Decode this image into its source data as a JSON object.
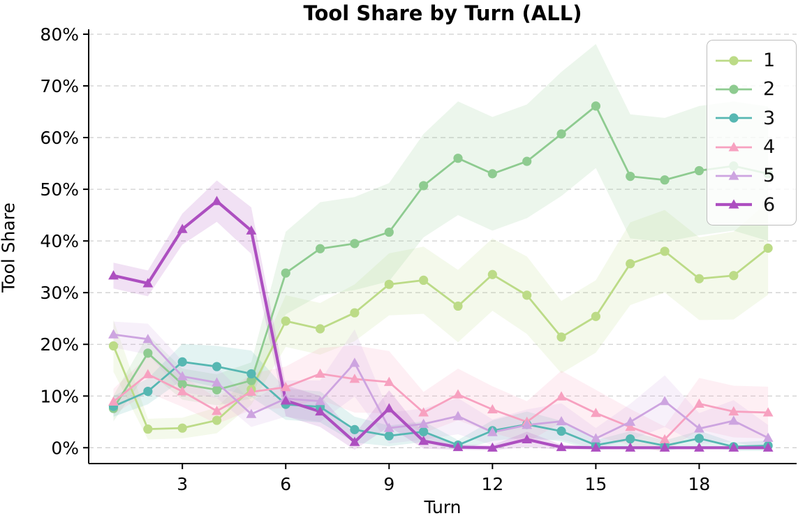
{
  "figure": {
    "title": "Tool Share by Turn (ALL)"
  },
  "axes": {
    "x_label": "Turn",
    "y_label": "Tool Share",
    "x_ticks": [
      {
        "turn": 3,
        "label": "3"
      },
      {
        "turn": 6,
        "label": "6"
      },
      {
        "turn": 9,
        "label": "9"
      },
      {
        "turn": 12,
        "label": "12"
      },
      {
        "turn": 15,
        "label": "15"
      },
      {
        "turn": 18,
        "label": "18"
      }
    ],
    "y_ticks": [
      {
        "value": 0,
        "label": "0%"
      },
      {
        "value": 10,
        "label": "10%"
      },
      {
        "value": 20,
        "label": "20%"
      },
      {
        "value": 30,
        "label": "30%"
      },
      {
        "value": 40,
        "label": "40%"
      },
      {
        "value": 50,
        "label": "50%"
      },
      {
        "value": 60,
        "label": "60%"
      },
      {
        "value": 70,
        "label": "70%"
      },
      {
        "value": 80,
        "label": "80%"
      }
    ]
  },
  "legend": {
    "position": "upper-right",
    "items": [
      {
        "label": "1"
      },
      {
        "label": "2"
      },
      {
        "label": "3"
      },
      {
        "label": "4"
      },
      {
        "label": "5"
      },
      {
        "label": "6"
      }
    ]
  },
  "style": {
    "grid_color": "#cfcfcf",
    "spine_color": "#000000",
    "band_alpha": 0.17
  },
  "chart_data": {
    "type": "line",
    "title": "Tool Share by Turn (ALL)",
    "xlabel": "Turn",
    "ylabel": "Tool Share",
    "x": [
      1,
      2,
      3,
      4,
      5,
      6,
      7,
      8,
      9,
      10,
      11,
      12,
      13,
      14,
      15,
      16,
      17,
      18,
      19,
      20
    ],
    "xlim": [
      0.3,
      20.8
    ],
    "ylim": [
      0,
      80
    ],
    "y_unit": "percent",
    "grid": "horizontal-dashed",
    "legend_position": "upper right",
    "series": [
      {
        "name": "1",
        "color": "#bcdb87",
        "marker": "circle",
        "line_width": 2.8,
        "values": [
          19.7,
          3.6,
          3.8,
          5.3,
          11.3,
          24.5,
          23.0,
          26.1,
          31.6,
          32.4,
          27.4,
          33.5,
          29.5,
          21.4,
          25.4,
          35.6,
          38.0,
          32.7,
          33.3,
          38.6
        ],
        "band_halfwidth": [
          5,
          2,
          2,
          2.5,
          3,
          5,
          5,
          5.5,
          6,
          6.5,
          7,
          7,
          7.5,
          7,
          7,
          8,
          8,
          8,
          8.5,
          9
        ]
      },
      {
        "name": "2",
        "color": "#8ecb90",
        "marker": "circle",
        "line_width": 2.8,
        "values": [
          7.6,
          18.3,
          12.3,
          11.2,
          13.0,
          33.8,
          38.5,
          39.5,
          41.7,
          50.7,
          56.0,
          53.0,
          55.4,
          60.7,
          66.1,
          52.5,
          51.8,
          53.6,
          54.5,
          53.0
        ],
        "band_halfwidth": [
          2.5,
          3.5,
          3,
          3,
          3.5,
          8,
          9,
          9,
          9.5,
          10,
          11,
          11,
          11,
          12,
          12,
          12,
          12,
          12.5,
          12.5,
          13
        ]
      },
      {
        "name": "3",
        "color": "#56b7b2",
        "marker": "circle",
        "line_width": 2.8,
        "values": [
          8.0,
          10.9,
          16.6,
          15.7,
          14.3,
          8.4,
          7.9,
          3.5,
          2.3,
          3.1,
          0.5,
          3.3,
          4.5,
          3.2,
          0.5,
          1.7,
          0.4,
          1.8,
          0.2,
          0.4
        ],
        "band_halfwidth": [
          2,
          2.5,
          3.5,
          4,
          4.5,
          3,
          3,
          2.5,
          2,
          2,
          1,
          2,
          2.5,
          2,
          1,
          1.5,
          1,
          1.5,
          0.8,
          1
        ]
      },
      {
        "name": "4",
        "color": "#f7a1c0",
        "marker": "triangle",
        "line_width": 2.8,
        "values": [
          8.9,
          14.2,
          10.9,
          7.1,
          10.8,
          11.7,
          14.3,
          13.3,
          12.7,
          6.8,
          10.3,
          7.4,
          5.0,
          9.9,
          6.7,
          4.0,
          1.6,
          8.5,
          7.0,
          6.8
        ],
        "band_halfwidth": [
          2.5,
          3.5,
          3,
          2.5,
          3.5,
          4,
          5,
          6.5,
          6,
          4,
          5,
          4.5,
          4,
          5,
          4.5,
          3.5,
          2.5,
          5,
          5,
          5
        ]
      },
      {
        "name": "5",
        "color": "#cda4e0",
        "marker": "triangle",
        "line_width": 2.8,
        "values": [
          21.9,
          21.0,
          13.8,
          12.6,
          6.5,
          9.5,
          9.0,
          16.4,
          3.8,
          4.6,
          6.1,
          3.0,
          4.4,
          5.1,
          1.8,
          5.0,
          9.0,
          3.7,
          5.2,
          1.9
        ],
        "band_halfwidth": [
          2.5,
          3,
          3,
          3,
          2.5,
          3.5,
          4,
          6.5,
          3,
          3,
          3.5,
          2.5,
          3,
          3.5,
          2,
          3.5,
          5,
          3,
          4,
          2.5
        ]
      },
      {
        "name": "6",
        "color": "#ad4fc0",
        "marker": "triangle",
        "line_width": 4.2,
        "values": [
          33.3,
          31.8,
          42.3,
          47.7,
          42.0,
          9.1,
          7.0,
          1.1,
          7.6,
          1.3,
          0.1,
          0.0,
          1.6,
          0.1,
          0.0,
          0.0,
          0.0,
          0.0,
          0.0,
          0.0
        ],
        "band_halfwidth": [
          2.5,
          2.5,
          3,
          4,
          4.5,
          3,
          3,
          1.5,
          3.5,
          1.5,
          0.5,
          0.5,
          1.5,
          0.5,
          0.3,
          0.3,
          0.3,
          0.3,
          0.3,
          0.3
        ]
      }
    ]
  }
}
